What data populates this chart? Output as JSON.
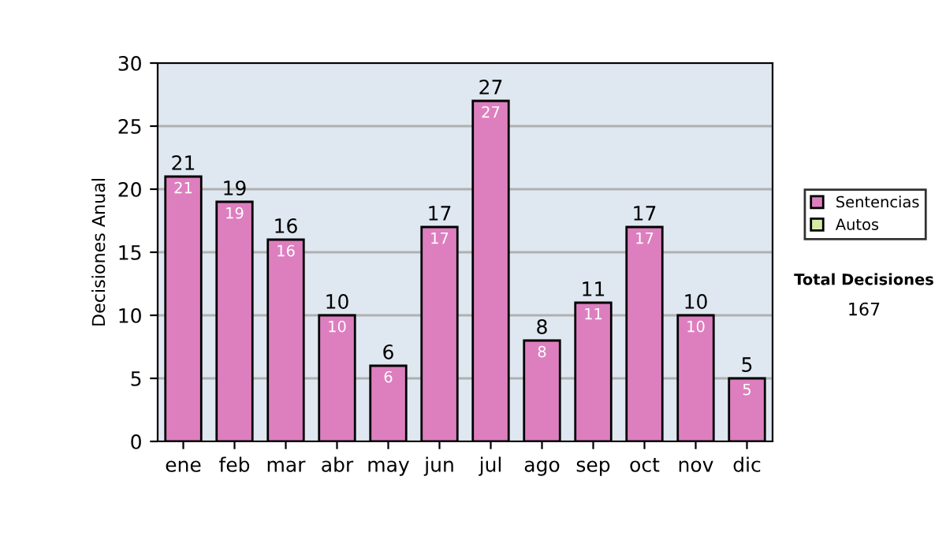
{
  "chart_data": {
    "type": "bar",
    "ylabel": "Decisiones Anual",
    "categories": [
      "ene",
      "feb",
      "mar",
      "abr",
      "may",
      "jun",
      "jul",
      "ago",
      "sep",
      "oct",
      "nov",
      "dic"
    ],
    "stacked": true,
    "series": [
      {
        "name": "Sentencias",
        "color": "#dd7fbf",
        "values": [
          21,
          19,
          16,
          10,
          6,
          17,
          27,
          8,
          11,
          17,
          10,
          5
        ]
      },
      {
        "name": "Autos",
        "color": "#d4eba6",
        "values": [
          null,
          null,
          null,
          null,
          null,
          null,
          null,
          null,
          null,
          null,
          null,
          null
        ]
      }
    ],
    "totals": [
      "21",
      "19",
      "16",
      "10",
      "6",
      "17",
      "27",
      "8",
      "11",
      "17",
      "10",
      "5"
    ],
    "data_labels": true,
    "ylim": [
      0,
      30
    ],
    "yticks": [
      0,
      5,
      10,
      15,
      20,
      25,
      30
    ],
    "grid": "y",
    "legend": "right",
    "annotations": [
      "Total Decisiones",
      "167"
    ]
  }
}
